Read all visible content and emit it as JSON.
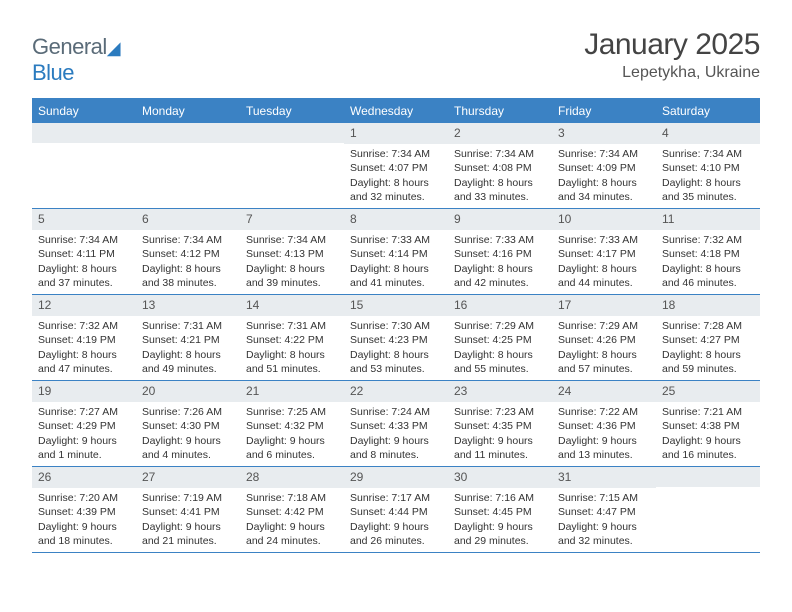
{
  "logo": {
    "part1": "General",
    "part2": "Blue"
  },
  "title": "January 2025",
  "location": "Lepetykha, Ukraine",
  "colors": {
    "header_bg": "#3b82c4",
    "header_text": "#ffffff",
    "day_bg": "#e8ecef",
    "border": "#3b82c4",
    "text": "#333333"
  },
  "weekdays": [
    "Sunday",
    "Monday",
    "Tuesday",
    "Wednesday",
    "Thursday",
    "Friday",
    "Saturday"
  ],
  "grid": {
    "cols": 7,
    "lead_blanks": 3,
    "trail_blanks": 1
  },
  "days": [
    {
      "n": "1",
      "sr": "Sunrise: 7:34 AM",
      "ss": "Sunset: 4:07 PM",
      "d1": "Daylight: 8 hours",
      "d2": "and 32 minutes."
    },
    {
      "n": "2",
      "sr": "Sunrise: 7:34 AM",
      "ss": "Sunset: 4:08 PM",
      "d1": "Daylight: 8 hours",
      "d2": "and 33 minutes."
    },
    {
      "n": "3",
      "sr": "Sunrise: 7:34 AM",
      "ss": "Sunset: 4:09 PM",
      "d1": "Daylight: 8 hours",
      "d2": "and 34 minutes."
    },
    {
      "n": "4",
      "sr": "Sunrise: 7:34 AM",
      "ss": "Sunset: 4:10 PM",
      "d1": "Daylight: 8 hours",
      "d2": "and 35 minutes."
    },
    {
      "n": "5",
      "sr": "Sunrise: 7:34 AM",
      "ss": "Sunset: 4:11 PM",
      "d1": "Daylight: 8 hours",
      "d2": "and 37 minutes."
    },
    {
      "n": "6",
      "sr": "Sunrise: 7:34 AM",
      "ss": "Sunset: 4:12 PM",
      "d1": "Daylight: 8 hours",
      "d2": "and 38 minutes."
    },
    {
      "n": "7",
      "sr": "Sunrise: 7:34 AM",
      "ss": "Sunset: 4:13 PM",
      "d1": "Daylight: 8 hours",
      "d2": "and 39 minutes."
    },
    {
      "n": "8",
      "sr": "Sunrise: 7:33 AM",
      "ss": "Sunset: 4:14 PM",
      "d1": "Daylight: 8 hours",
      "d2": "and 41 minutes."
    },
    {
      "n": "9",
      "sr": "Sunrise: 7:33 AM",
      "ss": "Sunset: 4:16 PM",
      "d1": "Daylight: 8 hours",
      "d2": "and 42 minutes."
    },
    {
      "n": "10",
      "sr": "Sunrise: 7:33 AM",
      "ss": "Sunset: 4:17 PM",
      "d1": "Daylight: 8 hours",
      "d2": "and 44 minutes."
    },
    {
      "n": "11",
      "sr": "Sunrise: 7:32 AM",
      "ss": "Sunset: 4:18 PM",
      "d1": "Daylight: 8 hours",
      "d2": "and 46 minutes."
    },
    {
      "n": "12",
      "sr": "Sunrise: 7:32 AM",
      "ss": "Sunset: 4:19 PM",
      "d1": "Daylight: 8 hours",
      "d2": "and 47 minutes."
    },
    {
      "n": "13",
      "sr": "Sunrise: 7:31 AM",
      "ss": "Sunset: 4:21 PM",
      "d1": "Daylight: 8 hours",
      "d2": "and 49 minutes."
    },
    {
      "n": "14",
      "sr": "Sunrise: 7:31 AM",
      "ss": "Sunset: 4:22 PM",
      "d1": "Daylight: 8 hours",
      "d2": "and 51 minutes."
    },
    {
      "n": "15",
      "sr": "Sunrise: 7:30 AM",
      "ss": "Sunset: 4:23 PM",
      "d1": "Daylight: 8 hours",
      "d2": "and 53 minutes."
    },
    {
      "n": "16",
      "sr": "Sunrise: 7:29 AM",
      "ss": "Sunset: 4:25 PM",
      "d1": "Daylight: 8 hours",
      "d2": "and 55 minutes."
    },
    {
      "n": "17",
      "sr": "Sunrise: 7:29 AM",
      "ss": "Sunset: 4:26 PM",
      "d1": "Daylight: 8 hours",
      "d2": "and 57 minutes."
    },
    {
      "n": "18",
      "sr": "Sunrise: 7:28 AM",
      "ss": "Sunset: 4:27 PM",
      "d1": "Daylight: 8 hours",
      "d2": "and 59 minutes."
    },
    {
      "n": "19",
      "sr": "Sunrise: 7:27 AM",
      "ss": "Sunset: 4:29 PM",
      "d1": "Daylight: 9 hours",
      "d2": "and 1 minute."
    },
    {
      "n": "20",
      "sr": "Sunrise: 7:26 AM",
      "ss": "Sunset: 4:30 PM",
      "d1": "Daylight: 9 hours",
      "d2": "and 4 minutes."
    },
    {
      "n": "21",
      "sr": "Sunrise: 7:25 AM",
      "ss": "Sunset: 4:32 PM",
      "d1": "Daylight: 9 hours",
      "d2": "and 6 minutes."
    },
    {
      "n": "22",
      "sr": "Sunrise: 7:24 AM",
      "ss": "Sunset: 4:33 PM",
      "d1": "Daylight: 9 hours",
      "d2": "and 8 minutes."
    },
    {
      "n": "23",
      "sr": "Sunrise: 7:23 AM",
      "ss": "Sunset: 4:35 PM",
      "d1": "Daylight: 9 hours",
      "d2": "and 11 minutes."
    },
    {
      "n": "24",
      "sr": "Sunrise: 7:22 AM",
      "ss": "Sunset: 4:36 PM",
      "d1": "Daylight: 9 hours",
      "d2": "and 13 minutes."
    },
    {
      "n": "25",
      "sr": "Sunrise: 7:21 AM",
      "ss": "Sunset: 4:38 PM",
      "d1": "Daylight: 9 hours",
      "d2": "and 16 minutes."
    },
    {
      "n": "26",
      "sr": "Sunrise: 7:20 AM",
      "ss": "Sunset: 4:39 PM",
      "d1": "Daylight: 9 hours",
      "d2": "and 18 minutes."
    },
    {
      "n": "27",
      "sr": "Sunrise: 7:19 AM",
      "ss": "Sunset: 4:41 PM",
      "d1": "Daylight: 9 hours",
      "d2": "and 21 minutes."
    },
    {
      "n": "28",
      "sr": "Sunrise: 7:18 AM",
      "ss": "Sunset: 4:42 PM",
      "d1": "Daylight: 9 hours",
      "d2": "and 24 minutes."
    },
    {
      "n": "29",
      "sr": "Sunrise: 7:17 AM",
      "ss": "Sunset: 4:44 PM",
      "d1": "Daylight: 9 hours",
      "d2": "and 26 minutes."
    },
    {
      "n": "30",
      "sr": "Sunrise: 7:16 AM",
      "ss": "Sunset: 4:45 PM",
      "d1": "Daylight: 9 hours",
      "d2": "and 29 minutes."
    },
    {
      "n": "31",
      "sr": "Sunrise: 7:15 AM",
      "ss": "Sunset: 4:47 PM",
      "d1": "Daylight: 9 hours",
      "d2": "and 32 minutes."
    }
  ]
}
